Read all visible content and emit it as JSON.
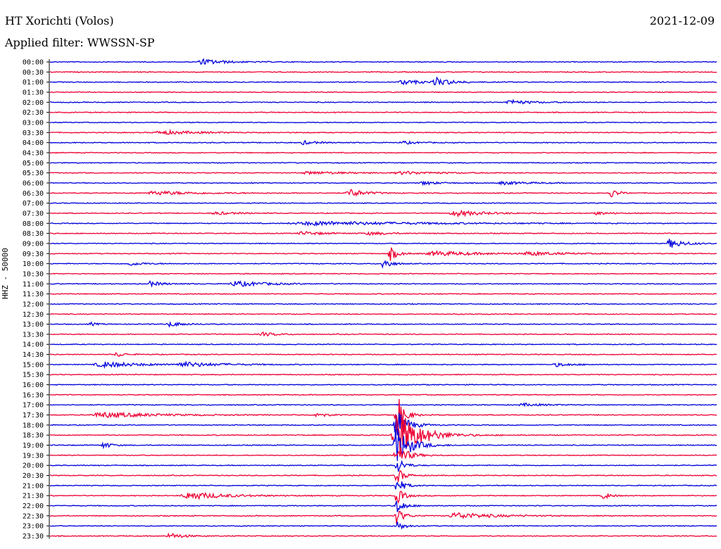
{
  "header": {
    "station": "HT Xorichti (Volos)",
    "date": "2021-12-09",
    "filter": "Applied filter: WWSSN-SP"
  },
  "chart_data": {
    "type": "line",
    "ylabel": "HHZ - 50000",
    "colors": [
      "#0000dd",
      "#ee0033"
    ],
    "rows": [
      {
        "label": "00:00",
        "events": [
          [
            0.23,
            0.6,
            0.03
          ]
        ]
      },
      {
        "label": "00:30",
        "events": []
      },
      {
        "label": "01:00",
        "events": [
          [
            0.53,
            0.5,
            0.03
          ],
          [
            0.58,
            0.9,
            0.02
          ]
        ]
      },
      {
        "label": "01:30",
        "events": []
      },
      {
        "label": "02:00",
        "events": [
          [
            0.69,
            0.5,
            0.03
          ]
        ]
      },
      {
        "label": "02:30",
        "events": []
      },
      {
        "label": "03:00",
        "events": []
      },
      {
        "label": "03:30",
        "events": [
          [
            0.17,
            0.4,
            0.05
          ]
        ]
      },
      {
        "label": "04:00",
        "events": [
          [
            0.38,
            0.4,
            0.02
          ],
          [
            0.53,
            0.3,
            0.02
          ]
        ]
      },
      {
        "label": "04:30",
        "events": []
      },
      {
        "label": "05:00",
        "events": []
      },
      {
        "label": "05:30",
        "events": [
          [
            0.39,
            0.3,
            0.05
          ],
          [
            0.53,
            0.3,
            0.05
          ]
        ]
      },
      {
        "label": "06:00",
        "events": [
          [
            0.56,
            0.4,
            0.02
          ],
          [
            0.68,
            0.3,
            0.04
          ]
        ]
      },
      {
        "label": "06:30",
        "events": [
          [
            0.16,
            0.4,
            0.06
          ],
          [
            0.45,
            0.9,
            0.02
          ],
          [
            0.84,
            1.1,
            0.01
          ]
        ]
      },
      {
        "label": "07:00",
        "events": []
      },
      {
        "label": "07:30",
        "events": [
          [
            0.25,
            0.3,
            0.03
          ],
          [
            0.61,
            0.6,
            0.04
          ],
          [
            0.82,
            0.3,
            0.02
          ]
        ]
      },
      {
        "label": "08:00",
        "events": [
          [
            0.4,
            0.4,
            0.15
          ]
        ]
      },
      {
        "label": "08:30",
        "events": [
          [
            0.38,
            0.4,
            0.03
          ],
          [
            0.48,
            0.3,
            0.03
          ]
        ]
      },
      {
        "label": "09:00",
        "events": [
          [
            0.93,
            1.0,
            0.02
          ]
        ]
      },
      {
        "label": "09:30",
        "events": [
          [
            0.51,
            1.6,
            0.01
          ],
          [
            0.58,
            0.5,
            0.06
          ],
          [
            0.72,
            0.4,
            0.04
          ]
        ]
      },
      {
        "label": "10:00",
        "events": [
          [
            0.5,
            1.4,
            0.01
          ],
          [
            0.12,
            0.4,
            0.02
          ]
        ]
      },
      {
        "label": "10:30",
        "events": []
      },
      {
        "label": "11:00",
        "events": [
          [
            0.15,
            0.5,
            0.02
          ],
          [
            0.28,
            0.6,
            0.04
          ]
        ]
      },
      {
        "label": "11:30",
        "events": []
      },
      {
        "label": "12:00",
        "events": []
      },
      {
        "label": "12:30",
        "events": []
      },
      {
        "label": "13:00",
        "events": [
          [
            0.18,
            0.5,
            0.02
          ],
          [
            0.06,
            0.4,
            0.01
          ]
        ]
      },
      {
        "label": "13:30",
        "events": [
          [
            0.32,
            0.4,
            0.02
          ]
        ]
      },
      {
        "label": "14:00",
        "events": []
      },
      {
        "label": "14:30",
        "events": [
          [
            0.1,
            0.6,
            0.01
          ]
        ]
      },
      {
        "label": "15:00",
        "events": [
          [
            0.08,
            0.6,
            0.05
          ],
          [
            0.2,
            0.5,
            0.05
          ],
          [
            0.76,
            0.4,
            0.02
          ]
        ]
      },
      {
        "label": "15:30",
        "events": []
      },
      {
        "label": "16:00",
        "events": []
      },
      {
        "label": "16:30",
        "events": []
      },
      {
        "label": "17:00",
        "events": [
          [
            0.71,
            0.3,
            0.03
          ]
        ]
      },
      {
        "label": "17:30",
        "events": [
          [
            0.08,
            0.6,
            0.07
          ],
          [
            0.4,
            0.8,
            0.01
          ],
          [
            0.52,
            5.0,
            0.01
          ]
        ]
      },
      {
        "label": "18:00",
        "events": [
          [
            0.52,
            3.5,
            0.015
          ]
        ]
      },
      {
        "label": "18:30",
        "events": [
          [
            0.52,
            6.0,
            0.03
          ]
        ]
      },
      {
        "label": "19:00",
        "events": [
          [
            0.52,
            4.0,
            0.02
          ],
          [
            0.08,
            0.8,
            0.01
          ]
        ]
      },
      {
        "label": "19:30",
        "events": [
          [
            0.52,
            2.5,
            0.015
          ]
        ]
      },
      {
        "label": "20:00",
        "events": [
          [
            0.52,
            2.0,
            0.01
          ]
        ]
      },
      {
        "label": "20:30",
        "events": [
          [
            0.52,
            1.8,
            0.01
          ]
        ]
      },
      {
        "label": "21:00",
        "events": [
          [
            0.52,
            1.8,
            0.01
          ]
        ]
      },
      {
        "label": "21:30",
        "events": [
          [
            0.21,
            0.8,
            0.05
          ],
          [
            0.83,
            0.8,
            0.01
          ],
          [
            0.52,
            1.8,
            0.01
          ]
        ]
      },
      {
        "label": "22:00",
        "events": [
          [
            0.52,
            1.8,
            0.01
          ]
        ]
      },
      {
        "label": "22:30",
        "events": [
          [
            0.61,
            0.7,
            0.05
          ],
          [
            0.52,
            1.8,
            0.01
          ]
        ]
      },
      {
        "label": "23:00",
        "events": [
          [
            0.52,
            1.2,
            0.01
          ]
        ]
      },
      {
        "label": "23:30",
        "events": [
          [
            0.18,
            0.6,
            0.02
          ]
        ]
      }
    ]
  }
}
